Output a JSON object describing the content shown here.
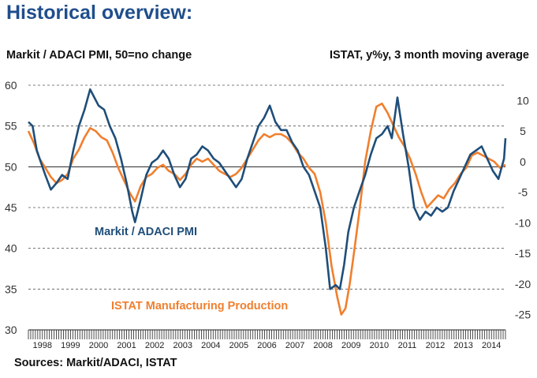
{
  "header": {
    "title": "Historical overview:",
    "left_subtitle": "Markit / ADACI PMI, 50=no change",
    "right_subtitle": "ISTAT, y%y, 3 month moving average",
    "source": "Sources: Markit/ADACI, ISTAT"
  },
  "colors": {
    "pmi": "#1f4e79",
    "istat": "#f07f2e",
    "grid": "#555555"
  },
  "chart_data": {
    "type": "line",
    "title": "Historical overview:",
    "x_range": [
      1998.0,
      2015.0
    ],
    "left_axis": {
      "label": "Markit / ADACI PMI, 50=no change",
      "range": [
        30,
        60
      ],
      "ticks": [
        "60",
        "55",
        "50",
        "45",
        "40",
        "35",
        "30"
      ],
      "tick_values": [
        60,
        55,
        50,
        45,
        40,
        35,
        30
      ]
    },
    "right_axis": {
      "label": "ISTAT, y%y, 3 month moving average",
      "range": [
        -27.5,
        12.5
      ],
      "ticks": [
        "10",
        "5",
        "0",
        "-5",
        "-10",
        "-15",
        "-20",
        "-25"
      ],
      "tick_values": [
        10,
        5,
        0,
        -5,
        -10,
        -15,
        -20,
        -25
      ]
    },
    "x_tick_labels": [
      "1998",
      "1999",
      "2000",
      "2001",
      "2002",
      "2003",
      "2004",
      "2005",
      "2006",
      "2007",
      "2008",
      "2009",
      "2010",
      "2011",
      "2012",
      "2013",
      "2014"
    ],
    "series": [
      {
        "name": "Markit / ADACI PMI",
        "axis": "left",
        "points": [
          [
            1998.0,
            55.5
          ],
          [
            1998.15,
            55.0
          ],
          [
            1998.3,
            52.0
          ],
          [
            1998.45,
            50.5
          ],
          [
            1998.6,
            49.0
          ],
          [
            1998.8,
            47.2
          ],
          [
            1999.0,
            48.0
          ],
          [
            1999.2,
            49.0
          ],
          [
            1999.4,
            48.5
          ],
          [
            1999.6,
            52.0
          ],
          [
            1999.8,
            55.0
          ],
          [
            2000.0,
            57.0
          ],
          [
            2000.2,
            59.5
          ],
          [
            2000.35,
            58.5
          ],
          [
            2000.5,
            57.5
          ],
          [
            2000.7,
            57.0
          ],
          [
            2000.9,
            55.0
          ],
          [
            2001.1,
            53.5
          ],
          [
            2001.3,
            51.0
          ],
          [
            2001.5,
            48.0
          ],
          [
            2001.7,
            44.5
          ],
          [
            2001.8,
            43.2
          ],
          [
            2002.0,
            46.0
          ],
          [
            2002.2,
            49.0
          ],
          [
            2002.4,
            50.5
          ],
          [
            2002.6,
            51.0
          ],
          [
            2002.8,
            52.0
          ],
          [
            2003.0,
            51.0
          ],
          [
            2003.2,
            49.0
          ],
          [
            2003.4,
            47.5
          ],
          [
            2003.6,
            48.5
          ],
          [
            2003.8,
            51.0
          ],
          [
            2004.0,
            51.5
          ],
          [
            2004.2,
            52.5
          ],
          [
            2004.4,
            52.0
          ],
          [
            2004.6,
            51.0
          ],
          [
            2004.8,
            50.5
          ],
          [
            2005.0,
            49.5
          ],
          [
            2005.2,
            48.5
          ],
          [
            2005.4,
            47.5
          ],
          [
            2005.6,
            48.5
          ],
          [
            2005.8,
            51.0
          ],
          [
            2006.0,
            53.0
          ],
          [
            2006.2,
            55.0
          ],
          [
            2006.4,
            56.0
          ],
          [
            2006.6,
            57.5
          ],
          [
            2006.8,
            55.5
          ],
          [
            2007.0,
            54.5
          ],
          [
            2007.2,
            54.5
          ],
          [
            2007.4,
            53.0
          ],
          [
            2007.6,
            52.0
          ],
          [
            2007.8,
            50.0
          ],
          [
            2008.0,
            49.0
          ],
          [
            2008.2,
            47.0
          ],
          [
            2008.4,
            45.0
          ],
          [
            2008.6,
            40.0
          ],
          [
            2008.75,
            35.0
          ],
          [
            2008.95,
            35.5
          ],
          [
            2009.1,
            35.0
          ],
          [
            2009.25,
            38.0
          ],
          [
            2009.4,
            42.0
          ],
          [
            2009.6,
            45.0
          ],
          [
            2009.8,
            47.0
          ],
          [
            2010.0,
            49.0
          ],
          [
            2010.2,
            51.5
          ],
          [
            2010.4,
            53.5
          ],
          [
            2010.6,
            54.0
          ],
          [
            2010.8,
            55.0
          ],
          [
            2010.95,
            53.5
          ],
          [
            2011.15,
            58.5
          ],
          [
            2011.35,
            54.0
          ],
          [
            2011.55,
            50.0
          ],
          [
            2011.75,
            45.0
          ],
          [
            2011.95,
            43.5
          ],
          [
            2012.15,
            44.5
          ],
          [
            2012.35,
            44.0
          ],
          [
            2012.55,
            45.0
          ],
          [
            2012.75,
            44.5
          ],
          [
            2012.95,
            45.0
          ],
          [
            2013.15,
            47.0
          ],
          [
            2013.35,
            48.5
          ],
          [
            2013.55,
            50.0
          ],
          [
            2013.75,
            51.5
          ],
          [
            2013.95,
            52.0
          ],
          [
            2014.15,
            52.5
          ],
          [
            2014.35,
            51.0
          ],
          [
            2014.55,
            49.5
          ],
          [
            2014.75,
            48.5
          ],
          [
            2014.95,
            51.0
          ],
          [
            2015.0,
            53.5
          ]
        ]
      },
      {
        "name": "ISTAT Manufacturing Production",
        "axis": "right",
        "points": [
          [
            1998.0,
            5.0
          ],
          [
            1998.2,
            3.0
          ],
          [
            1998.4,
            0.5
          ],
          [
            1998.6,
            -1.0
          ],
          [
            1998.8,
            -2.5
          ],
          [
            1999.0,
            -3.5
          ],
          [
            1999.2,
            -3.0
          ],
          [
            1999.4,
            -2.0
          ],
          [
            1999.6,
            0.5
          ],
          [
            1999.8,
            2.0
          ],
          [
            2000.0,
            4.0
          ],
          [
            2000.2,
            5.5
          ],
          [
            2000.4,
            5.0
          ],
          [
            2000.6,
            4.0
          ],
          [
            2000.8,
            3.5
          ],
          [
            2001.0,
            1.5
          ],
          [
            2001.2,
            -1.0
          ],
          [
            2001.4,
            -3.0
          ],
          [
            2001.6,
            -5.0
          ],
          [
            2001.8,
            -6.5
          ],
          [
            2002.0,
            -4.0
          ],
          [
            2002.2,
            -2.5
          ],
          [
            2002.4,
            -2.0
          ],
          [
            2002.6,
            -1.0
          ],
          [
            2002.8,
            -0.5
          ],
          [
            2003.0,
            -1.5
          ],
          [
            2003.2,
            -2.0
          ],
          [
            2003.4,
            -3.0
          ],
          [
            2003.6,
            -2.0
          ],
          [
            2003.8,
            -0.5
          ],
          [
            2004.0,
            0.5
          ],
          [
            2004.2,
            0.0
          ],
          [
            2004.4,
            0.5
          ],
          [
            2004.6,
            -0.5
          ],
          [
            2004.8,
            -1.5
          ],
          [
            2005.0,
            -2.0
          ],
          [
            2005.2,
            -2.5
          ],
          [
            2005.4,
            -2.0
          ],
          [
            2005.6,
            -1.0
          ],
          [
            2005.8,
            0.5
          ],
          [
            2006.0,
            2.0
          ],
          [
            2006.2,
            3.5
          ],
          [
            2006.4,
            4.5
          ],
          [
            2006.6,
            4.0
          ],
          [
            2006.8,
            4.5
          ],
          [
            2007.0,
            4.5
          ],
          [
            2007.2,
            4.0
          ],
          [
            2007.4,
            3.0
          ],
          [
            2007.6,
            1.5
          ],
          [
            2007.8,
            0.5
          ],
          [
            2008.0,
            -1.0
          ],
          [
            2008.2,
            -2.0
          ],
          [
            2008.4,
            -5.0
          ],
          [
            2008.6,
            -10.0
          ],
          [
            2008.8,
            -17.0
          ],
          [
            2009.0,
            -22.0
          ],
          [
            2009.15,
            -25.0
          ],
          [
            2009.3,
            -24.0
          ],
          [
            2009.45,
            -20.0
          ],
          [
            2009.6,
            -15.0
          ],
          [
            2009.8,
            -8.0
          ],
          [
            2010.0,
            0.0
          ],
          [
            2010.2,
            5.0
          ],
          [
            2010.4,
            9.0
          ],
          [
            2010.6,
            9.5
          ],
          [
            2010.8,
            8.0
          ],
          [
            2011.0,
            6.0
          ],
          [
            2011.2,
            4.0
          ],
          [
            2011.4,
            2.5
          ],
          [
            2011.6,
            0.5
          ],
          [
            2011.8,
            -2.0
          ],
          [
            2012.0,
            -5.0
          ],
          [
            2012.2,
            -7.5
          ],
          [
            2012.4,
            -6.5
          ],
          [
            2012.6,
            -5.5
          ],
          [
            2012.8,
            -6.0
          ],
          [
            2013.0,
            -4.5
          ],
          [
            2013.2,
            -3.5
          ],
          [
            2013.4,
            -2.0
          ],
          [
            2013.6,
            -1.0
          ],
          [
            2013.8,
            1.0
          ],
          [
            2014.0,
            1.5
          ],
          [
            2014.2,
            1.0
          ],
          [
            2014.4,
            0.5
          ],
          [
            2014.6,
            0.0
          ],
          [
            2014.8,
            -1.0
          ],
          [
            2015.0,
            -0.5
          ]
        ]
      }
    ],
    "annotations": [
      "Markit / ADACI PMI",
      "ISTAT Manufacturing Production"
    ]
  }
}
